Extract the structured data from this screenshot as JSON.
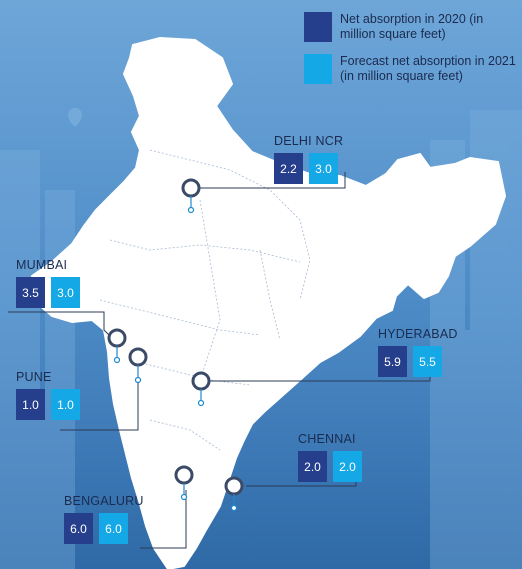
{
  "colors": {
    "net_absorption_2020": "#263f8c",
    "forecast_2021": "#14a8e6",
    "background": "#3f7fbd",
    "map_fill": "#ffffff",
    "connector": "#2b3a55"
  },
  "legend": [
    {
      "color_key": "net_absorption_2020",
      "label": "Net absorption in 2020 (in million square feet)"
    },
    {
      "color_key": "forecast_2021",
      "label": "Forecast net absorption in 2021 (in million square feet)"
    }
  ],
  "cities": [
    {
      "name": "DELHI NCR",
      "net_2020": "2.2",
      "forecast_2021": "3.0"
    },
    {
      "name": "MUMBAI",
      "net_2020": "3.5",
      "forecast_2021": "3.0"
    },
    {
      "name": "HYDERABAD",
      "net_2020": "5.9",
      "forecast_2021": "5.5"
    },
    {
      "name": "PUNE",
      "net_2020": "1.0",
      "forecast_2021": "1.0"
    },
    {
      "name": "CHENNAI",
      "net_2020": "2.0",
      "forecast_2021": "2.0"
    },
    {
      "name": "BENGALURU",
      "net_2020": "6.0",
      "forecast_2021": "6.0"
    }
  ]
}
